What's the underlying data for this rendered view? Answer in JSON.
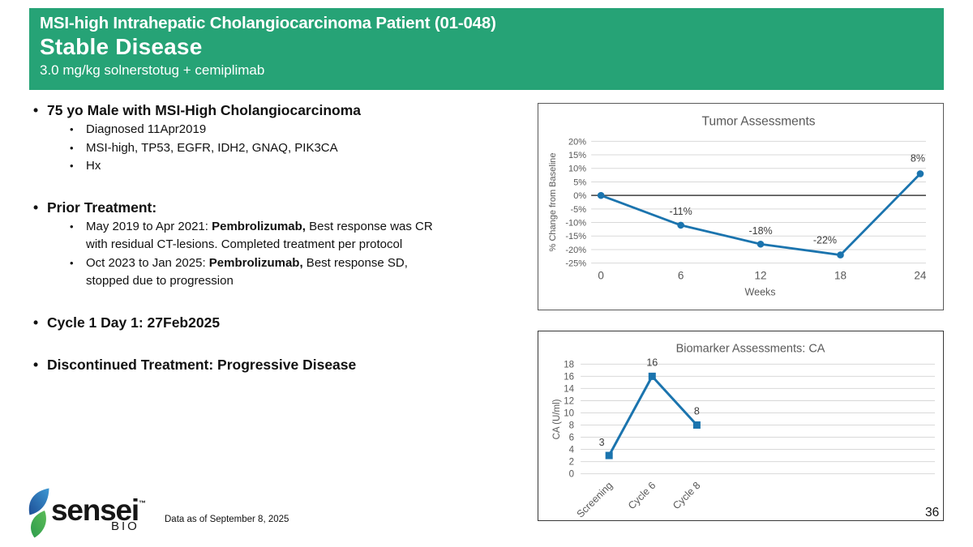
{
  "slide": {
    "header": {
      "kicker": "MSI-high Intrahepatic Cholangiocarcinoma Patient (01-048)",
      "title": "Stable Disease",
      "subtitle": "3.0 mg/kg solnerstotug + cemiplimab",
      "background_color": "#26A376",
      "text_color": "#FFFFFF"
    },
    "bullets": [
      {
        "level": 1,
        "segments": [
          {
            "text": "75 yo Male with MSI-High Cholangiocarcinoma",
            "bold": true
          }
        ]
      },
      {
        "level": 2,
        "segments": [
          {
            "text": "Diagnosed 11Apr2019"
          }
        ]
      },
      {
        "level": 2,
        "segments": [
          {
            "text": "MSI-high, TP53, EGFR, IDH2, GNAQ, PIK3CA"
          }
        ]
      },
      {
        "level": 2,
        "segments": [
          {
            "text": "Hx"
          }
        ]
      },
      {
        "spacer": true
      },
      {
        "level": 1,
        "segments": [
          {
            "text": "Prior Treatment:",
            "bold": true
          }
        ]
      },
      {
        "level": 2,
        "segments": [
          {
            "text": "May 2019 to Apr 2021: "
          },
          {
            "text": "Pembrolizumab,",
            "bold": true
          },
          {
            "text": " Best response was CR with residual CT-lesions. Completed treatment per protocol"
          }
        ]
      },
      {
        "level": 2,
        "segments": [
          {
            "text": "Oct 2023 to Jan 2025:  "
          },
          {
            "text": "Pembrolizumab,",
            "bold": true
          },
          {
            "text": " Best response SD, stopped due to progression"
          }
        ]
      },
      {
        "spacer": true
      },
      {
        "level": 1,
        "segments": [
          {
            "text": "Cycle 1 Day 1: 27Feb2025",
            "bold": true
          }
        ]
      },
      {
        "spacer": true
      },
      {
        "level": 1,
        "segments": [
          {
            "text": "Discontinued Treatment: Progressive Disease",
            "bold": true
          }
        ]
      }
    ],
    "footer": {
      "logo_word": "sensei",
      "logo_tm": "™",
      "logo_sub": "BIO",
      "data_as_of": "Data as of September 8, 2025",
      "page_number": "36"
    }
  },
  "chart_data": [
    {
      "type": "line",
      "title": "Tumor Assessments",
      "xlabel": "Weeks",
      "ylabel": "% Change from Baseline",
      "x": [
        0,
        6,
        12,
        18,
        24
      ],
      "values": [
        0,
        -11,
        -18,
        -22,
        8
      ],
      "point_labels": [
        "",
        "-11%",
        "-18%",
        "-22%",
        "8%"
      ],
      "xlim": [
        0,
        24
      ],
      "ylim": [
        -25,
        20
      ],
      "ytick_step": 5,
      "ytick_suffix": "%",
      "grid": true,
      "zero_line": true,
      "legend": "none",
      "marker": "circle",
      "line_color": "#1B74AE",
      "grid_color": "#D9D9D9",
      "zero_line_color": "#3F3F3F",
      "axis_text_color": "#595959",
      "label_text_color": "#3D3D3D"
    },
    {
      "type": "line",
      "title": "Biomarker Assessments: CA",
      "xlabel": "",
      "ylabel": "CA (U/ml)",
      "categories": [
        "Screening",
        "Cycle 6",
        "Cycle 8"
      ],
      "values": [
        3,
        16,
        8
      ],
      "point_labels": [
        "3",
        "16",
        "8"
      ],
      "ylim": [
        0,
        18
      ],
      "ytick_step": 2,
      "grid": true,
      "legend": "none",
      "marker": "square",
      "line_color": "#1B74AE",
      "grid_color": "#D9D9D9",
      "axis_text_color": "#595959",
      "label_text_color": "#3D3D3D"
    }
  ]
}
